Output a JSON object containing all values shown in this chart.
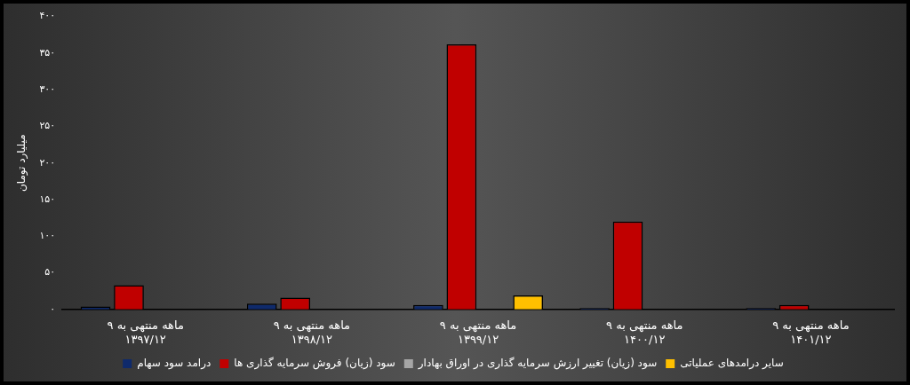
{
  "chart_data": {
    "type": "bar",
    "ylabel": "میلیارد تومان",
    "categories": [
      "۹ ماهه منتهی به ۱۳۹۷/۱۲",
      "۹ ماهه منتهی به ۱۳۹۸/۱۲",
      "۹ ماهه منتهی به ۱۳۹۹/۱۲",
      "۹ ماهه منتهی به ۱۴۰۰/۱۲",
      "۹ ماهه منتهی به ۱۴۰۱/۱۲"
    ],
    "series": [
      {
        "name": "درامد سود سهام",
        "color": "#0f2a6b",
        "values": [
          4,
          8,
          6,
          2,
          2
        ]
      },
      {
        "name": "سود (زیان) فروش سرمایه گذاری ها",
        "color": "#c00000",
        "values": [
          33,
          16,
          362,
          120,
          6
        ]
      },
      {
        "name": "سود (زیان) تغییر ارزش سرمایه گذاری در اوراق بهادار",
        "color": "#a6a6a6",
        "values": [
          null,
          null,
          null,
          null,
          null
        ]
      },
      {
        "name": "سایر درامدهای عملیاتی",
        "color": "#ffc000",
        "values": [
          null,
          null,
          19,
          null,
          null
        ]
      }
    ],
    "ylim": [
      0,
      400
    ],
    "yticks": [
      {
        "value": 0,
        "label": "۰"
      },
      {
        "value": 50,
        "label": "۵۰"
      },
      {
        "value": 100,
        "label": "۱۰۰"
      },
      {
        "value": 150,
        "label": "۱۵۰"
      },
      {
        "value": 200,
        "label": "۲۰۰"
      },
      {
        "value": 250,
        "label": "۲۵۰"
      },
      {
        "value": 300,
        "label": "۳۰۰"
      },
      {
        "value": 350,
        "label": "۳۵۰"
      },
      {
        "value": 400,
        "label": "۴۰۰"
      }
    ],
    "grid": false,
    "legend": "bottom"
  }
}
